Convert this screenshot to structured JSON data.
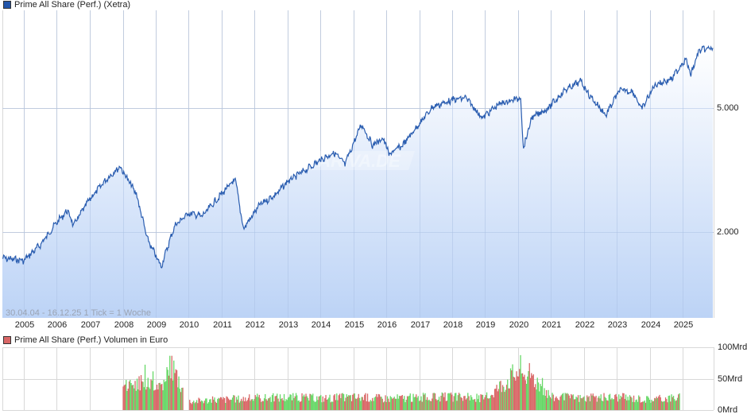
{
  "chart_data": [
    {
      "type": "area",
      "title": "Prime All Share (Perf.) (Xetra)",
      "legend": [
        {
          "label": "Prime All Share (Perf.) (Xetra)",
          "color": "#2255aa"
        }
      ],
      "line_color": "#2a5db0",
      "fill_gradient": [
        "#ffffff",
        "#bcd3f6"
      ],
      "xlabel": "",
      "ylabel": "",
      "y_scale": "log",
      "y_ticks": [
        "2.000",
        "5.000"
      ],
      "y_tick_values": [
        2000,
        5000
      ],
      "x_ticks": [
        "2005",
        "2006",
        "2007",
        "2008",
        "2009",
        "2010",
        "2011",
        "2012",
        "2013",
        "2014",
        "2015",
        "2016",
        "2017",
        "2018",
        "2019",
        "2020",
        "2021",
        "2022",
        "2023",
        "2024",
        "2025"
      ],
      "range_label": "30.04.04 - 16.12.25",
      "tick_label": "1 Tick = 1 Woche",
      "grid": true,
      "watermark": "ARIVA.DE",
      "x": [
        "2004-05",
        "2005-01",
        "2005-07",
        "2006-01",
        "2006-05",
        "2006-07",
        "2007-01",
        "2007-07",
        "2007-12",
        "2008-06",
        "2008-10",
        "2009-03",
        "2009-08",
        "2010-01",
        "2010-06",
        "2011-01",
        "2011-06",
        "2011-09",
        "2012-03",
        "2012-09",
        "2013-01",
        "2013-06",
        "2014-01",
        "2014-06",
        "2014-10",
        "2015-04",
        "2015-08",
        "2015-12",
        "2016-02",
        "2016-07",
        "2017-01",
        "2017-06",
        "2018-01",
        "2018-06",
        "2018-12",
        "2019-06",
        "2020-02",
        "2020-03",
        "2020-06",
        "2020-12",
        "2021-06",
        "2021-12",
        "2022-03",
        "2022-09",
        "2023-02",
        "2023-07",
        "2023-10",
        "2024-03",
        "2024-09",
        "2025-02",
        "2025-04",
        "2025-07",
        "2025-12"
      ],
      "values": [
        1650,
        1620,
        1820,
        2150,
        2350,
        2100,
        2550,
        2950,
        3250,
        2650,
        1900,
        1550,
        2100,
        2300,
        2250,
        2650,
        2950,
        2050,
        2450,
        2650,
        2900,
        3100,
        3400,
        3600,
        3300,
        4450,
        3800,
        4000,
        3550,
        3800,
        4450,
        5050,
        5300,
        5400,
        4650,
        5150,
        5400,
        3700,
        4650,
        5000,
        5700,
        6100,
        5500,
        4750,
        5700,
        5650,
        4950,
        5950,
        6200,
        7200,
        6400,
        7650,
        7800
      ]
    },
    {
      "type": "bar",
      "title": "Prime All Share (Perf.) Volumen in Euro",
      "legend": [
        {
          "label": "Prime All Share (Perf.) Volumen in Euro",
          "color": "#d96666"
        }
      ],
      "colors": {
        "up": "#66d866",
        "down": "#d96666"
      },
      "y_ticks": [
        "0Mrd",
        "50Mrd",
        "100Mrd"
      ],
      "y_tick_values": [
        0,
        50,
        100
      ],
      "ylim": [
        0,
        100
      ],
      "grid": true,
      "x": [
        "2008",
        "2008-06",
        "2009",
        "2009-06",
        "2010",
        "2011",
        "2012",
        "2013",
        "2014",
        "2015",
        "2016",
        "2017",
        "2018",
        "2019",
        "2020-03",
        "2021",
        "2022",
        "2023",
        "2024",
        "2024-12"
      ],
      "values": [
        45,
        95,
        40,
        85,
        15,
        18,
        20,
        22,
        20,
        22,
        20,
        21,
        22,
        20,
        75,
        22,
        20,
        22,
        18,
        22
      ]
    }
  ],
  "labels": {
    "main_legend": "Prime All Share (Perf.) (Xetra)",
    "vol_legend": "Prime All Share (Perf.) Volumen in Euro",
    "range": "30.04.04 - 16.12.25   1 Tick = 1 Woche",
    "y_5000": "5.000",
    "y_2000": "2.000",
    "v_100": "100Mrd",
    "v_50": "50Mrd",
    "v_0": "0Mrd",
    "watermark": "ARIVA.DE",
    "years": [
      "2005",
      "2006",
      "2007",
      "2008",
      "2009",
      "2010",
      "2011",
      "2012",
      "2013",
      "2014",
      "2015",
      "2016",
      "2017",
      "2018",
      "2019",
      "2020",
      "2021",
      "2022",
      "2023",
      "2024",
      "2025"
    ]
  },
  "colors": {
    "line": "#2a5db0",
    "legend_main": "#2255aa",
    "legend_vol": "#d96666",
    "vol_up": "#66d866",
    "vol_down": "#d96666",
    "grid": "#d8d8d8"
  }
}
